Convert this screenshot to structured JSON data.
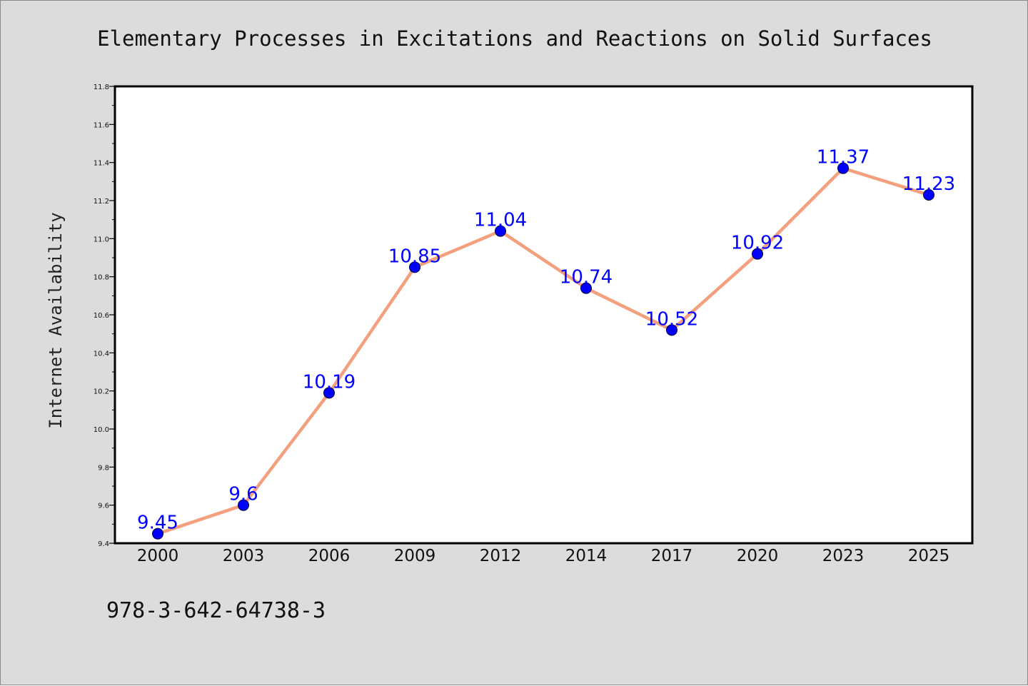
{
  "chart_data": {
    "type": "line",
    "title": "Elementary Processes in Excitations and Reactions on Solid Surfaces",
    "ylabel": "Internet Availability",
    "xlabel": "",
    "categories": [
      "2000",
      "2003",
      "2006",
      "2009",
      "2012",
      "2014",
      "2017",
      "2020",
      "2023",
      "2025"
    ],
    "values": [
      9.45,
      9.6,
      10.19,
      10.85,
      11.04,
      10.74,
      10.52,
      10.92,
      11.37,
      11.23
    ],
    "data_labels": [
      "9.45",
      "9.6",
      "10.19",
      "10.85",
      "11.04",
      "10.74",
      "10.52",
      "10.92",
      "11.37",
      "11.23"
    ],
    "ylim": [
      9.4,
      11.8
    ],
    "yticks": [
      "9.4",
      "9.6",
      "9.8",
      "10.0",
      "10.2",
      "10.4",
      "10.6",
      "10.8",
      "11.0",
      "11.2",
      "11.4",
      "11.6",
      "11.8"
    ],
    "grid": false,
    "legend": "none",
    "colors": {
      "line": "#f4a07e",
      "marker": "#0000ff",
      "label": "#0000ff",
      "background": "#dcdcdc",
      "plot_background": "#ffffff"
    }
  },
  "caption": "978-3-642-64738-3"
}
